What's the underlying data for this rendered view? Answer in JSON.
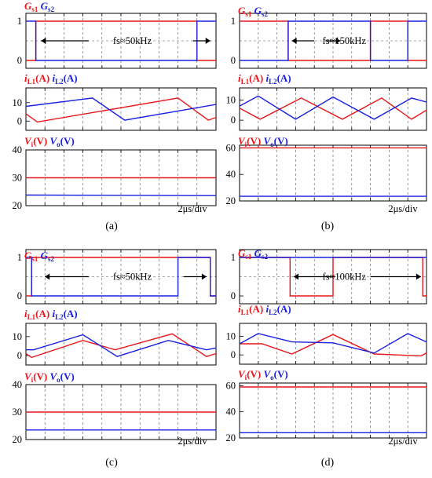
{
  "colors": {
    "red": "#e8161b",
    "blue": "#1820e0",
    "grid": "#555555"
  },
  "subfig_labels": [
    "(a)",
    "(b)",
    "(c)",
    "(d)"
  ],
  "chart_data": [
    {
      "label": "(a)",
      "type": "line",
      "time_div_label": "2μs/div",
      "panels": [
        {
          "title": [
            "G",
            "s1",
            "G",
            "s2"
          ],
          "ylim": [
            0,
            1
          ],
          "yticks": [
            0,
            1
          ],
          "annotation": "fs≈50kHz",
          "arrows": [
            [
              0.08,
              0.33
            ],
            [
              0.88,
              0.97
            ]
          ],
          "series": [
            {
              "name": "Gs1",
              "color": "red",
              "x": [
                0.0,
                0.052,
                0.052,
                0.9,
                0.9,
                1.0
              ],
              "y": [
                0,
                0,
                1,
                1,
                0,
                0
              ]
            },
            {
              "name": "Gs2",
              "color": "blue",
              "x": [
                0.0,
                0.052,
                0.052,
                0.9,
                0.9,
                1.0
              ],
              "y": [
                1,
                1,
                0,
                0,
                1,
                1
              ]
            }
          ]
        },
        {
          "title": [
            "i",
            "L1",
            "(A)",
            "i",
            "L2",
            "(A)"
          ],
          "ylim": [
            -5,
            18
          ],
          "yticks": [
            0,
            10
          ],
          "series": [
            {
              "name": "iL1",
              "color": "red",
              "x": [
                0.0,
                0.06,
                0.8,
                0.96,
                1.0
              ],
              "y": [
                4,
                -0.5,
                12.5,
                0.5,
                2
              ]
            },
            {
              "name": "iL2",
              "color": "blue",
              "x": [
                0.0,
                0.35,
                0.52,
                1.0
              ],
              "y": [
                8,
                12.5,
                0.5,
                9
              ]
            }
          ]
        },
        {
          "title": [
            "V",
            "i",
            "(V)",
            "V",
            "o",
            "(V)"
          ],
          "ylim": [
            20,
            40
          ],
          "yticks": [
            20,
            30,
            40
          ],
          "series": [
            {
              "name": "Vi",
              "color": "red",
              "x": [
                0.0,
                1.0
              ],
              "y": [
                30,
                30
              ]
            },
            {
              "name": "Vo",
              "color": "blue",
              "x": [
                0.0,
                1.0
              ],
              "y": [
                23.8,
                23.6
              ]
            }
          ]
        }
      ]
    },
    {
      "label": "(b)",
      "type": "line",
      "time_div_label": "2μs/div",
      "panels": [
        {
          "title": [
            "G",
            "s1",
            "G",
            "s2"
          ],
          "ylim": [
            0,
            1
          ],
          "yticks": [
            0,
            1
          ],
          "annotation": "fs≈150kHz",
          "arrows": [
            [
              0.28,
              0.4
            ],
            [
              0.46,
              0.54
            ]
          ],
          "series": [
            {
              "name": "Gs1",
              "color": "red",
              "x": [
                0.0,
                0.26,
                0.26,
                0.7,
                0.7,
                0.9,
                0.9,
                1.0
              ],
              "y": [
                1,
                1,
                0,
                0,
                1,
                1,
                0,
                0
              ]
            },
            {
              "name": "Gs2",
              "color": "blue",
              "x": [
                0.0,
                0.26,
                0.26,
                0.7,
                0.7,
                0.9,
                0.9,
                1.0
              ],
              "y": [
                0,
                0,
                1,
                1,
                0,
                0,
                1,
                1
              ]
            }
          ]
        },
        {
          "title": [
            "i",
            "L1",
            "(A)",
            "i",
            "L2",
            "(A)"
          ],
          "ylim": [
            -5,
            16
          ],
          "yticks": [
            0,
            10
          ],
          "series": [
            {
              "name": "iL1",
              "color": "red",
              "x": [
                0.0,
                0.11,
                0.33,
                0.55,
                0.76,
                0.92,
                1.0
              ],
              "y": [
                6,
                0.5,
                11,
                0.5,
                11,
                0.5,
                5
              ]
            },
            {
              "name": "iL2",
              "color": "blue",
              "x": [
                0.0,
                0.1,
                0.3,
                0.5,
                0.72,
                0.92,
                1.0
              ],
              "y": [
                7,
                12,
                0.5,
                11.5,
                0.5,
                11,
                9
              ]
            }
          ]
        },
        {
          "title": [
            "V",
            "i",
            "(V)",
            "V",
            "o",
            "(V)"
          ],
          "ylim": [
            20,
            62
          ],
          "yticks": [
            20,
            40,
            60
          ],
          "series": [
            {
              "name": "Vi",
              "color": "red",
              "x": [
                0.0,
                1.0
              ],
              "y": [
                60,
                60
              ]
            },
            {
              "name": "Vo",
              "color": "blue",
              "x": [
                0.0,
                1.0
              ],
              "y": [
                23.5,
                23.5
              ]
            }
          ]
        }
      ]
    },
    {
      "label": "(c)",
      "type": "line",
      "time_div_label": "2μs/div",
      "panels": [
        {
          "title": [
            "G",
            "s1",
            "G",
            "s2"
          ],
          "ylim": [
            0,
            1
          ],
          "yticks": [
            0,
            1
          ],
          "annotation": "fs≈50kHz",
          "arrows": [
            [
              0.1,
              0.33
            ],
            [
              0.83,
              0.95
            ]
          ],
          "series": [
            {
              "name": "Gs1",
              "color": "red",
              "x": [
                0.0,
                0.03,
                0.03,
                0.8,
                0.8,
                0.97,
                0.97,
                1.0
              ],
              "y": [
                0,
                0,
                1,
                1,
                1,
                1,
                0,
                0
              ]
            },
            {
              "name": "Gs2",
              "color": "blue",
              "x": [
                0.0,
                0.03,
                0.03,
                0.8,
                0.8,
                0.97,
                0.97,
                1.0
              ],
              "y": [
                1,
                1,
                0,
                0,
                1,
                1,
                0,
                0
              ]
            }
          ]
        },
        {
          "title": [
            "i",
            "L1",
            "(A)",
            "i",
            "L2",
            "(A)"
          ],
          "ylim": [
            -5,
            17
          ],
          "yticks": [
            0,
            10
          ],
          "series": [
            {
              "name": "iL1",
              "color": "red",
              "x": [
                0.0,
                0.03,
                0.3,
                0.47,
                0.77,
                0.95,
                1.0
              ],
              "y": [
                1,
                -1,
                8,
                3,
                11.5,
                -0.5,
                1
              ]
            },
            {
              "name": "iL2",
              "color": "blue",
              "x": [
                0.0,
                0.04,
                0.3,
                0.48,
                0.75,
                0.95,
                1.0
              ],
              "y": [
                3,
                3,
                11,
                -0.5,
                8,
                3,
                4
              ]
            }
          ]
        },
        {
          "title": [
            "V",
            "i",
            "(V)",
            "V",
            "o",
            "(V)"
          ],
          "ylim": [
            20,
            40
          ],
          "yticks": [
            20,
            30,
            40
          ],
          "series": [
            {
              "name": "Vi",
              "color": "red",
              "x": [
                0.0,
                1.0
              ],
              "y": [
                30,
                30
              ]
            },
            {
              "name": "Vo",
              "color": "blue",
              "x": [
                0.0,
                1.0
              ],
              "y": [
                23.5,
                23.5
              ]
            }
          ]
        }
      ]
    },
    {
      "label": "(d)",
      "type": "line",
      "time_div_label": "2μs/div",
      "panels": [
        {
          "title": [
            "G",
            "s1",
            "G",
            "s2"
          ],
          "ylim": [
            0,
            1
          ],
          "yticks": [
            0,
            1
          ],
          "annotation": "fs≈100kHz",
          "arrows": [
            [
              0.29,
              0.51
            ],
            [
              0.7,
              0.97
            ]
          ],
          "series": [
            {
              "name": "Gs1",
              "color": "red",
              "x": [
                0.0,
                0.27,
                0.27,
                0.5,
                0.5,
                0.98,
                0.98,
                1.0
              ],
              "y": [
                1,
                1,
                0,
                0,
                1,
                1,
                0,
                0
              ]
            },
            {
              "name": "Gs2",
              "color": "blue",
              "x": [
                0.0,
                0.27,
                0.27,
                0.5,
                0.5,
                0.98,
                0.98,
                1.0
              ],
              "y": [
                1,
                1,
                1,
                1,
                1,
                1,
                1,
                1
              ]
            }
          ]
        },
        {
          "title": [
            "i",
            "L1",
            "(A)",
            "i",
            "L2",
            "(A)"
          ],
          "ylim": [
            -5,
            17
          ],
          "yticks": [
            0,
            10
          ],
          "series": [
            {
              "name": "iL1",
              "color": "red",
              "x": [
                0.0,
                0.12,
                0.28,
                0.5,
                0.72,
                0.97,
                1.0
              ],
              "y": [
                6,
                6,
                0.5,
                11,
                0.5,
                -0.5,
                1
              ]
            },
            {
              "name": "iL2",
              "color": "blue",
              "x": [
                0.0,
                0.1,
                0.28,
                0.5,
                0.72,
                0.9,
                1.0
              ],
              "y": [
                6,
                11.5,
                7,
                6.5,
                1,
                11.5,
                7
              ]
            }
          ]
        },
        {
          "title": [
            "V",
            "i",
            "(V)",
            "V",
            "o",
            "(V)"
          ],
          "ylim": [
            20,
            62
          ],
          "yticks": [
            20,
            40,
            60
          ],
          "series": [
            {
              "name": "Vi",
              "color": "red",
              "x": [
                0.0,
                1.0
              ],
              "y": [
                59,
                59
              ]
            },
            {
              "name": "Vo",
              "color": "blue",
              "x": [
                0.0,
                1.0
              ],
              "y": [
                24,
                24
              ]
            }
          ]
        }
      ]
    }
  ]
}
